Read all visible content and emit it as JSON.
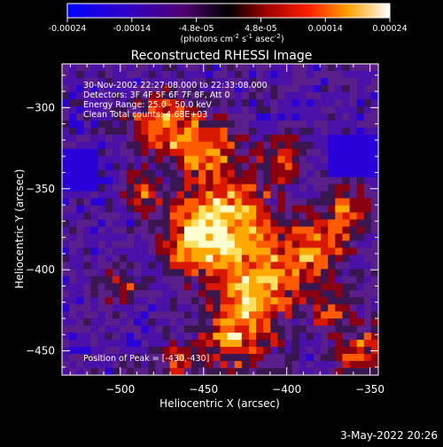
{
  "colorbar": {
    "tick_labels": [
      "-0.00024",
      "-0.00014",
      "-4.8e-05",
      "4.8e-05",
      "0.00014",
      "0.00024"
    ],
    "unit_label": "(photons cm",
    "unit_sup1": "-2",
    "unit_mid": " s",
    "unit_sup2": "-1",
    "unit_end": " asec",
    "unit_sup3": "-2",
    "unit_close": ")"
  },
  "chart_data": {
    "type": "heatmap",
    "title": "Reconstructed RHESSI Image",
    "xlabel": "Heliocentric X (arcsec)",
    "ylabel": "Heliocentric Y (arcsec)",
    "xlim": [
      -535,
      -345
    ],
    "ylim": [
      -465,
      -273
    ],
    "x_ticks": [
      -500,
      -450,
      -400,
      -350
    ],
    "y_ticks": [
      -300,
      -350,
      -400,
      -450
    ],
    "x_tick_labels": [
      "−500",
      "−450",
      "−400",
      "−350"
    ],
    "y_tick_labels": [
      "−300",
      "−350",
      "−400",
      "−450"
    ],
    "colorscale": [
      "#0a00ff",
      "#3a00c0",
      "#5a1690",
      "#000000",
      "#b00000",
      "#ff4000",
      "#ffb000",
      "#ffffa0",
      "#ffffff"
    ],
    "value_range": [
      -0.00024,
      0.00024
    ],
    "peak_position": [
      -430,
      -430
    ],
    "annotations": [
      "30-Nov-2002 22:27:08.000 to 22:33:08.000",
      "Detectors: 3F 4F 5F 6F 7F 8F, Att 0",
      "Energy Range: 25.0 - 50.0 keV",
      "Clean    Total counts: 4.68E+03"
    ],
    "peak_label": "Position of Peak = [-430,-430]"
  },
  "timestamp": "3-May-2022 20:26"
}
